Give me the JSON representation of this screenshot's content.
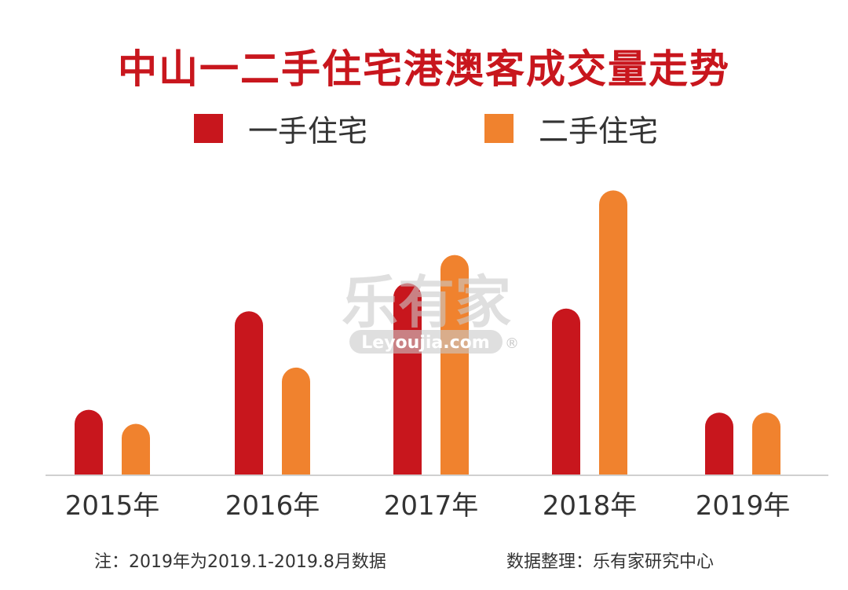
{
  "title": "中山一二手住宅港澳客成交量走势",
  "watermark": {
    "brand": "乐有家",
    "site": "Leyoujia.com",
    "mark": "®"
  },
  "colors": {
    "title": "#c8161d",
    "series1": "#c8161d",
    "series2": "#f0822e"
  },
  "note": "注：2019年为2019.1-2019.8月数据",
  "source": "数据整理：乐有家研究中心",
  "chart_data": {
    "type": "bar",
    "title": "中山一二手住宅港澳客成交量走势",
    "categories": [
      "2015年",
      "2016年",
      "2017年",
      "2018年",
      "2019年"
    ],
    "series": [
      {
        "name": "一手住宅",
        "color": "#c8161d",
        "values": [
          23,
          58,
          68,
          59,
          22
        ]
      },
      {
        "name": "二手住宅",
        "color": "#f0822e",
        "values": [
          18,
          38,
          78,
          101,
          22
        ]
      }
    ],
    "xlabel": "",
    "ylabel": "",
    "ylim": [
      0,
      105
    ],
    "grid": false,
    "y_axis_visible": false,
    "legend_position": "top-center"
  }
}
